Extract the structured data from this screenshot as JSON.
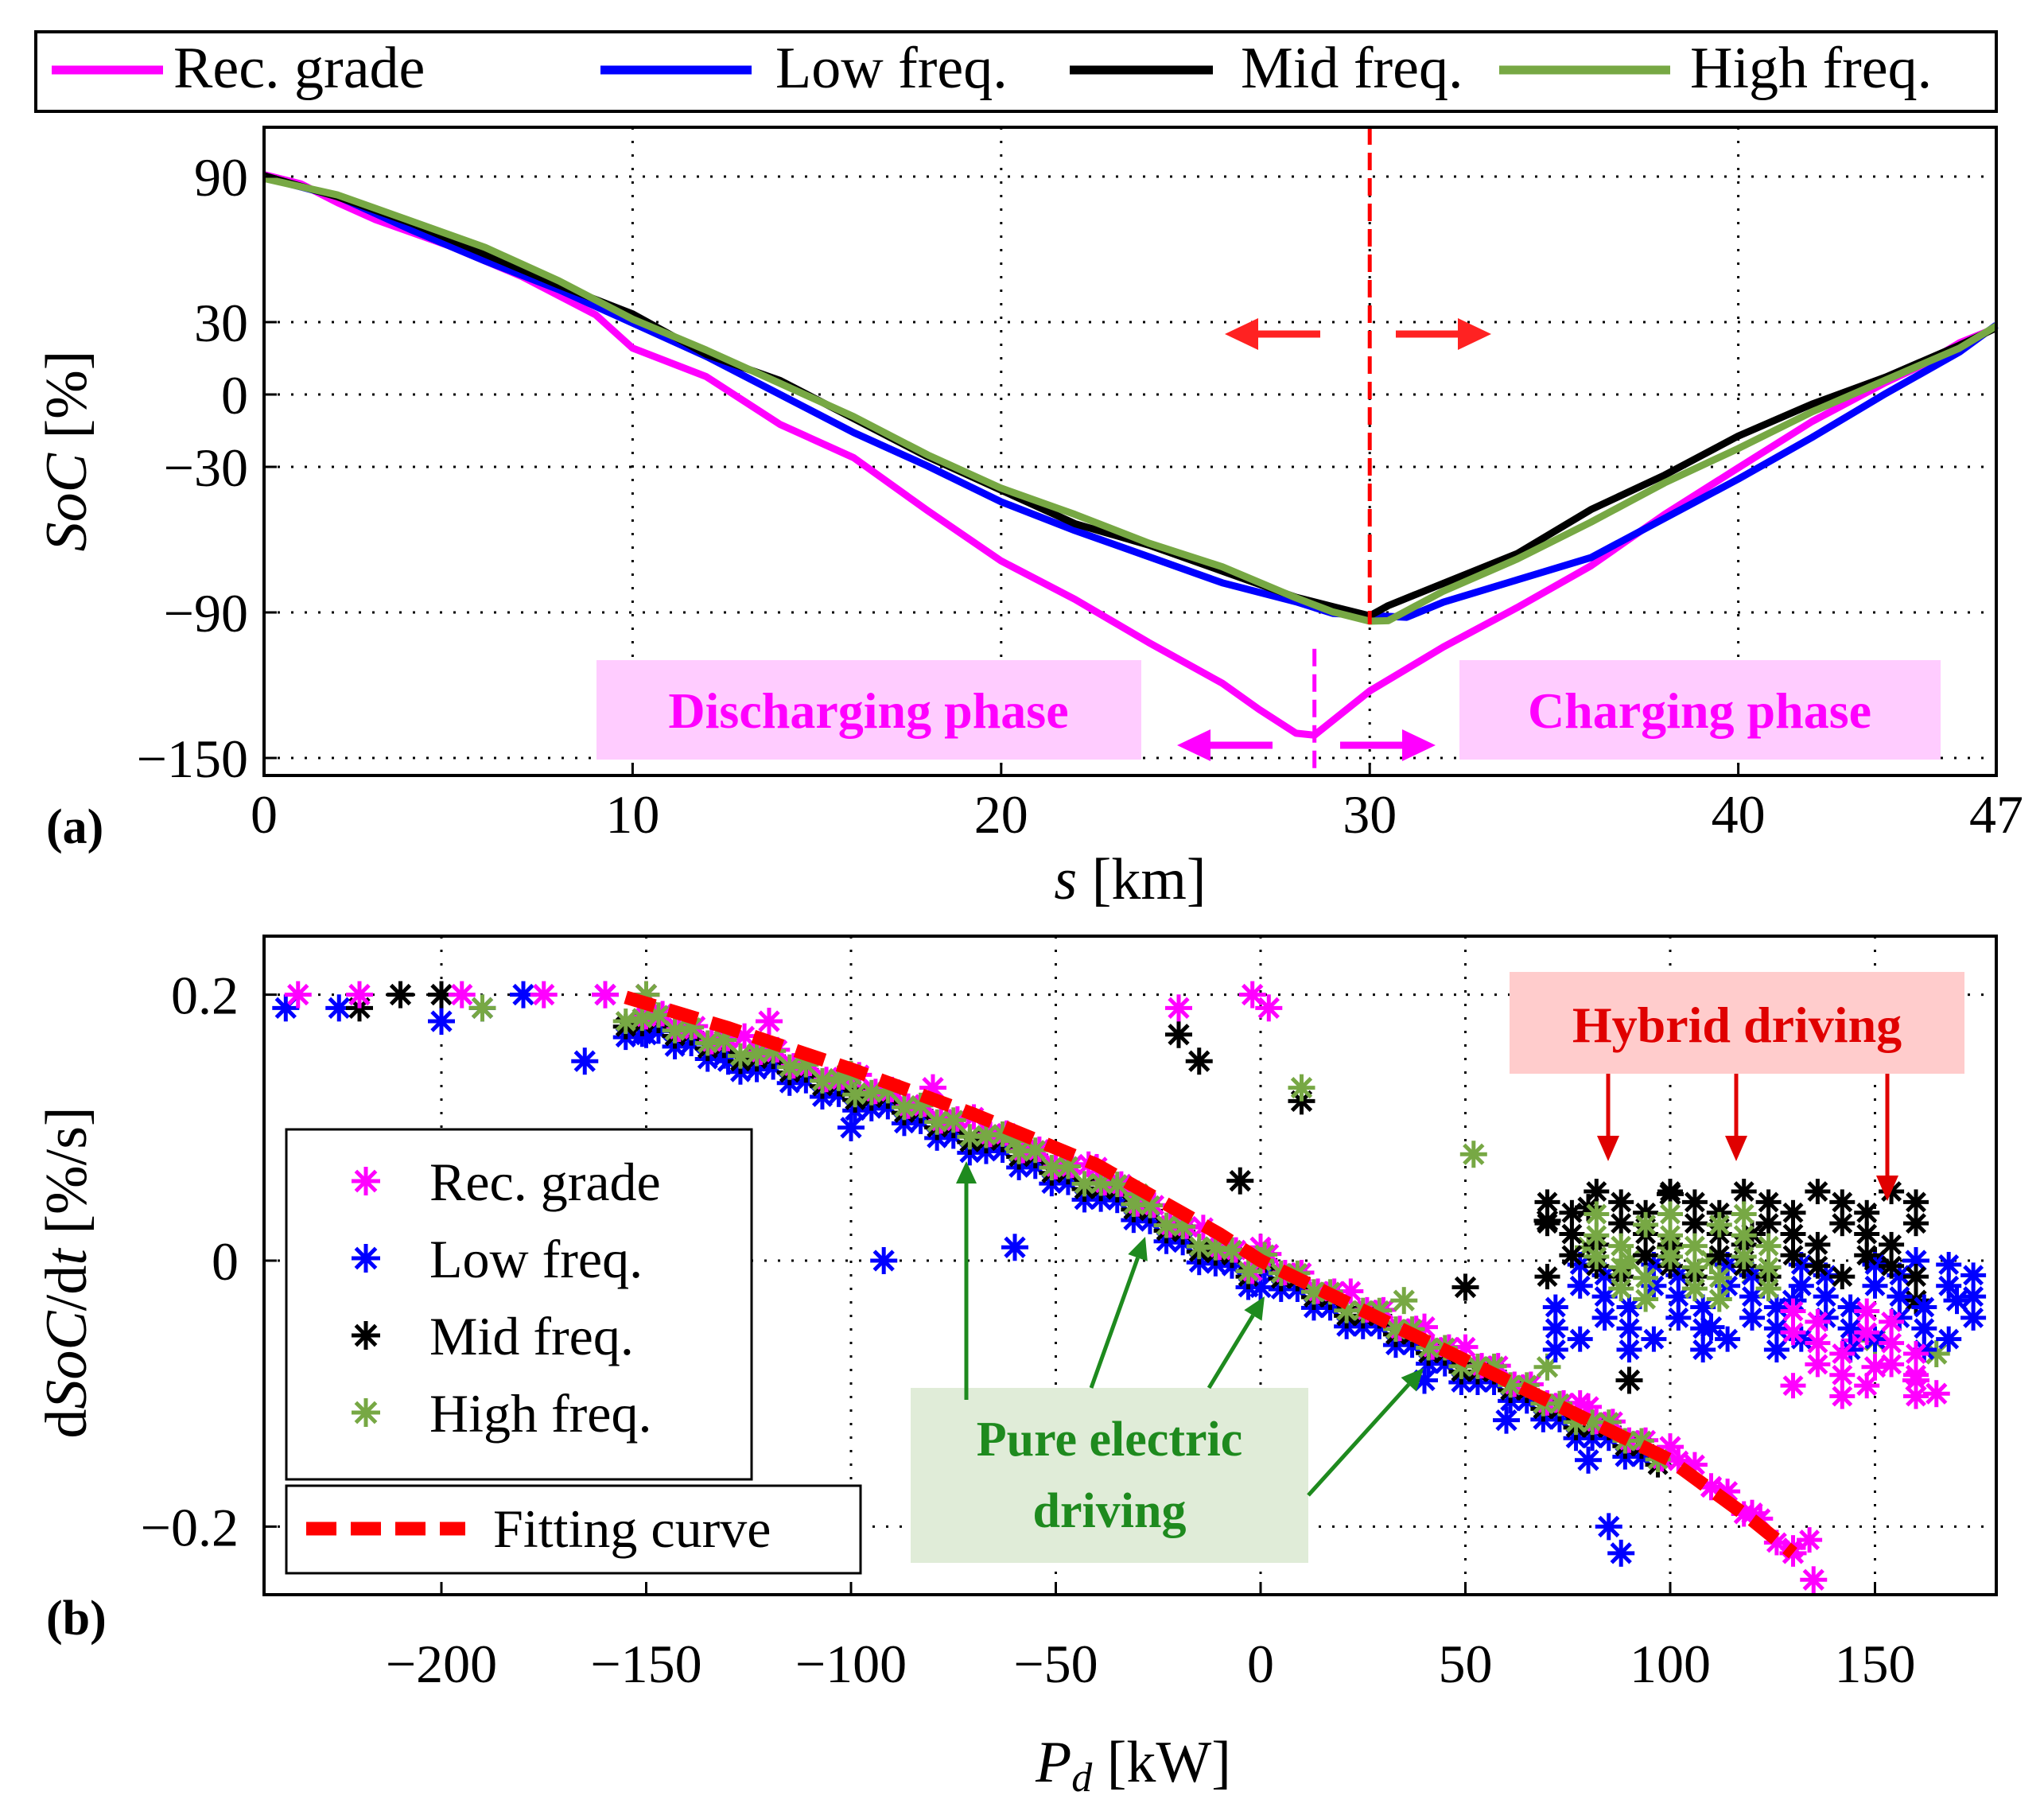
{
  "panel_a": {
    "label": "(a)",
    "legend": [
      {
        "name": "Rec. grade",
        "color": "#ff00ff"
      },
      {
        "name": "Low freq.",
        "color": "#0000ff"
      },
      {
        "name": "Mid freq.",
        "color": "#000000"
      },
      {
        "name": "High freq.",
        "color": "#77a844"
      }
    ],
    "annotations": {
      "discharging": "Discharging phase",
      "charging": "Charging phase"
    }
  },
  "panel_b": {
    "label": "(b)",
    "legend": [
      {
        "name": "Rec. grade",
        "color": "#ff00ff"
      },
      {
        "name": "Low freq.",
        "color": "#0000ff"
      },
      {
        "name": "Mid freq.",
        "color": "#000000"
      },
      {
        "name": "High freq.",
        "color": "#77a844"
      }
    ],
    "fit_legend": "Fitting curve",
    "annotations": {
      "hybrid": "Hybrid driving",
      "pure_line1": "Pure electric",
      "pure_line2": "driving"
    }
  },
  "chart_data": [
    {
      "type": "line",
      "xlabel_var": "s",
      "xlabel_unit": "[km]",
      "ylabel_var": "SoC",
      "ylabel_unit": "[%]",
      "xlim": [
        0,
        47
      ],
      "y_ticks": [
        90,
        30,
        0,
        -30,
        -90,
        -150
      ],
      "y_tick_labels": [
        "90",
        "30",
        "0",
        "−30",
        "−90",
        "−150"
      ],
      "x_ticks": [
        0,
        10,
        20,
        30,
        40,
        47
      ],
      "x_tick_labels": [
        "0",
        "10",
        "20",
        "30",
        "40",
        "47"
      ],
      "grid": true,
      "legend_position": "top",
      "vline_red": 30,
      "vline_magenta": 28.5,
      "series": [
        {
          "name": "Rec. grade",
          "color": "#ff00ff",
          "x": [
            0,
            1,
            2,
            3,
            5,
            7,
            9,
            10,
            12,
            14,
            16,
            18,
            20,
            22,
            24,
            26,
            27,
            28,
            28.5,
            30,
            32,
            34,
            36,
            38,
            40,
            42,
            44,
            45,
            46,
            47
          ],
          "y": [
            90,
            87,
            80,
            72,
            62,
            48,
            33,
            20,
            7,
            -12,
            -27,
            -48,
            -68,
            -85,
            -102,
            -120,
            -130,
            -139,
            -141,
            -122,
            -105,
            -88,
            -70,
            -50,
            -30,
            -12,
            5,
            13,
            21,
            28
          ]
        },
        {
          "name": "Low freq.",
          "color": "#0000ff",
          "x": [
            0,
            2,
            4,
            6,
            8,
            10,
            12,
            14,
            16,
            18,
            20,
            22,
            24,
            26,
            28,
            29,
            30,
            31,
            32,
            34,
            36,
            38,
            40,
            42,
            44,
            46,
            47
          ],
          "y": [
            90,
            81,
            68,
            56,
            43,
            30,
            15,
            0,
            -15,
            -30,
            -44,
            -57,
            -67,
            -77,
            -86,
            -90,
            -92,
            -92,
            -85,
            -77,
            -67,
            -52,
            -35,
            -17,
            0,
            18,
            28
          ]
        },
        {
          "name": "Mid freq.",
          "color": "#000000",
          "x": [
            0,
            2,
            4,
            6,
            8,
            10,
            12,
            14,
            16,
            18,
            20,
            22,
            24,
            26,
            28,
            29,
            30,
            30.5,
            32,
            34,
            36,
            38,
            40,
            42,
            44,
            46,
            47
          ],
          "y": [
            90,
            82,
            70,
            58,
            46,
            33,
            17,
            5,
            -10,
            -25,
            -40,
            -53,
            -63,
            -73,
            -83,
            -88,
            -91,
            -88,
            -78,
            -65,
            -48,
            -33,
            -18,
            -4,
            8,
            20,
            28
          ]
        },
        {
          "name": "High freq.",
          "color": "#77a844",
          "x": [
            0,
            2,
            4,
            6,
            8,
            10,
            12,
            14,
            16,
            18,
            20,
            22,
            24,
            26,
            28,
            29,
            30,
            30.5,
            32,
            34,
            36,
            38,
            40,
            42,
            44,
            46,
            47
          ],
          "y": [
            90,
            82,
            72,
            60,
            47,
            32,
            18,
            5,
            -10,
            -25,
            -38,
            -50,
            -61,
            -72,
            -84,
            -89,
            -94,
            -93,
            -82,
            -68,
            -52,
            -37,
            -22,
            -8,
            6,
            20,
            28
          ]
        }
      ]
    },
    {
      "type": "scatter",
      "xlabel_var": "P",
      "xlabel_sub": "d",
      "xlabel_unit": "[kW]",
      "ylabel_pre": "d",
      "ylabel_var": "SoC",
      "ylabel_mid": "/d",
      "ylabel_var2": "t",
      "ylabel_unit": "[%/s]",
      "xlim": [
        -245,
        178
      ],
      "ylim": [
        -0.25,
        0.24
      ],
      "x_ticks": [
        -200,
        -150,
        -100,
        -50,
        0,
        50,
        100,
        150
      ],
      "x_tick_labels": [
        "−200",
        "−150",
        "−100",
        "−50",
        "0",
        "50",
        "100",
        "150"
      ],
      "y_ticks": [
        0.2,
        0,
        -0.2
      ],
      "y_tick_labels": [
        "0.2",
        "0",
        "−0.2"
      ],
      "grid": true,
      "legend_position": "left",
      "fit_curve": {
        "name": "Fitting curve",
        "color": "#ff0000",
        "x": [
          -155,
          -130,
          -100,
          -70,
          -40,
          -10,
          0,
          20,
          40,
          60,
          80,
          100,
          120,
          130
        ],
        "y": [
          0.198,
          0.175,
          0.144,
          0.11,
          0.072,
          0.02,
          0.0,
          -0.03,
          -0.06,
          -0.09,
          -0.12,
          -0.15,
          -0.195,
          -0.22
        ]
      },
      "series": [
        {
          "name": "Rec. grade",
          "color": "#ff00ff",
          "x": [
            -235,
            -220,
            -195,
            -175,
            -160,
            -150,
            -120,
            -80,
            -40,
            0,
            40,
            80,
            100,
            110,
            120,
            130,
            135,
            -20,
            -2,
            2,
            145,
            150,
            160,
            165
          ],
          "y": [
            0.2,
            0.2,
            0.2,
            0.2,
            0.2,
            0.2,
            0.18,
            0.13,
            0.07,
            0.01,
            -0.05,
            -0.11,
            -0.14,
            -0.17,
            -0.19,
            -0.22,
            -0.24,
            0.19,
            0.2,
            0.19,
            -0.06,
            -0.08,
            -0.09,
            -0.1
          ]
        },
        {
          "name": "Low freq.",
          "color": "#0000ff",
          "x": [
            -238,
            -225,
            -200,
            -190,
            -180,
            -165,
            -160,
            -150,
            -130,
            -100,
            -92,
            -60,
            -50,
            0,
            40,
            60,
            80,
            85,
            88,
            110,
            130,
            160,
            170
          ],
          "y": [
            0.19,
            0.19,
            0.18,
            0.19,
            0.2,
            0.15,
            0.2,
            0.17,
            0.15,
            0.1,
            0.0,
            0.01,
            0.07,
            -0.02,
            -0.09,
            -0.12,
            -0.15,
            -0.2,
            -0.22,
            -0.05,
            -0.03,
            0.0,
            -0.03
          ]
        },
        {
          "name": "Mid freq.",
          "color": "#000000",
          "x": [
            -220,
            -210,
            -200,
            -150,
            -100,
            -20,
            -15,
            -5,
            10,
            50,
            70,
            80,
            100,
            120,
            150,
            160,
            90
          ],
          "y": [
            0.19,
            0.2,
            0.2,
            0.2,
            0.13,
            0.17,
            0.15,
            0.06,
            0.12,
            -0.02,
            0.03,
            0.04,
            0.05,
            0.02,
            0.0,
            -0.03,
            -0.09
          ]
        },
        {
          "name": "High freq.",
          "color": "#77a844",
          "x": [
            -190,
            -150,
            -100,
            -60,
            -30,
            0,
            10,
            35,
            52,
            70,
            80,
            90,
            100,
            110,
            120,
            150,
            165
          ],
          "y": [
            0.19,
            0.2,
            0.14,
            0.09,
            0.05,
            0.0,
            0.13,
            -0.03,
            0.08,
            -0.08,
            0.01,
            0.0,
            0.01,
            0.0,
            -0.01,
            -0.06,
            -0.07
          ]
        }
      ]
    }
  ]
}
